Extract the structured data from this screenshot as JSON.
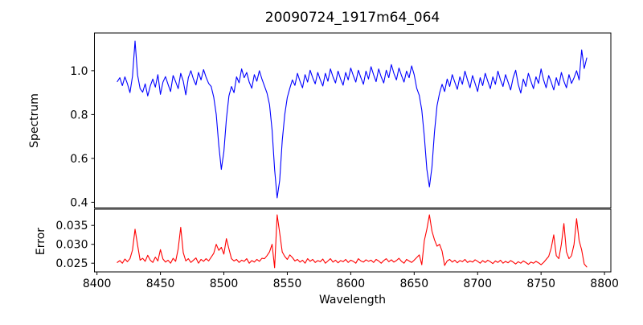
{
  "chart_data": [
    {
      "type": "line",
      "title": "20090724_1917m64_064",
      "ylabel": "Spectrum",
      "xlabel": "",
      "grid": false,
      "legend": false,
      "xlim": [
        8398,
        8805
      ],
      "ylim": [
        0.374,
        1.172
      ],
      "yticks": [
        1.0,
        0.8,
        0.6,
        0.4
      ],
      "ytick_labels": [
        "1.0",
        "0.8",
        "0.6",
        "0.4"
      ],
      "series": [
        {
          "name": "spectrum",
          "color": "#0000ff",
          "x_start": 8416,
          "x_step": 2,
          "values": [
            0.95,
            0.968,
            0.932,
            0.972,
            0.94,
            0.9,
            0.975,
            1.135,
            0.98,
            0.918,
            0.902,
            0.94,
            0.885,
            0.93,
            0.962,
            0.925,
            0.982,
            0.892,
            0.948,
            0.973,
            0.938,
            0.905,
            0.978,
            0.95,
            0.918,
            0.988,
            0.952,
            0.89,
            0.968,
            1.0,
            0.962,
            0.935,
            0.992,
            0.958,
            1.005,
            0.97,
            0.942,
            0.928,
            0.88,
            0.8,
            0.66,
            0.55,
            0.63,
            0.78,
            0.885,
            0.928,
            0.9,
            0.972,
            0.945,
            1.008,
            0.968,
            0.992,
            0.948,
            0.92,
            0.982,
            0.952,
            1.0,
            0.962,
            0.93,
            0.898,
            0.845,
            0.73,
            0.55,
            0.42,
            0.5,
            0.68,
            0.8,
            0.878,
            0.92,
            0.958,
            0.933,
            0.988,
            0.952,
            0.922,
            0.982,
            0.948,
            1.002,
            0.968,
            0.94,
            0.992,
            0.958,
            0.93,
            0.988,
            0.952,
            1.008,
            0.972,
            0.944,
            0.998,
            0.962,
            0.934,
            0.992,
            0.958,
            1.012,
            0.978,
            0.948,
            1.002,
            0.968,
            0.938,
            0.998,
            0.962,
            1.018,
            0.982,
            0.95,
            1.008,
            0.972,
            0.944,
            1.002,
            0.968,
            1.028,
            0.988,
            0.958,
            1.012,
            0.978,
            0.948,
            0.998,
            0.968,
            1.022,
            0.982,
            0.92,
            0.888,
            0.82,
            0.7,
            0.55,
            0.47,
            0.56,
            0.72,
            0.84,
            0.898,
            0.938,
            0.905,
            0.962,
            0.928,
            0.982,
            0.948,
            0.915,
            0.972,
            0.938,
            0.998,
            0.958,
            0.922,
            0.978,
            0.942,
            0.905,
            0.968,
            0.932,
            0.988,
            0.952,
            0.918,
            0.972,
            0.938,
            0.998,
            0.958,
            0.928,
            0.982,
            0.948,
            0.912,
            0.968,
            1.002,
            0.938,
            0.898,
            0.962,
            0.928,
            0.988,
            0.952,
            0.918,
            0.972,
            0.942,
            1.008,
            0.958,
            0.922,
            0.978,
            0.948,
            0.912,
            0.968,
            0.932,
            0.992,
            0.952,
            0.922,
            0.982,
            0.942,
            0.968,
            1.0,
            0.958,
            1.095,
            1.01,
            1.058
          ]
        }
      ]
    },
    {
      "type": "line",
      "title": "",
      "ylabel": "Error",
      "xlabel": "Wavelength",
      "grid": false,
      "legend": false,
      "xlim": [
        8398,
        8805
      ],
      "ylim": [
        0.0227,
        0.0393
      ],
      "yticks": [
        0.035,
        0.03,
        0.025
      ],
      "ytick_labels": [
        "0.035",
        "0.030",
        "0.025"
      ],
      "xticks": [
        8400,
        8450,
        8500,
        8550,
        8600,
        8650,
        8700,
        8750,
        8800
      ],
      "xtick_labels": [
        "8400",
        "8450",
        "8500",
        "8550",
        "8600",
        "8650",
        "8700",
        "8750",
        "8800"
      ],
      "series": [
        {
          "name": "error",
          "color": "#ff0000",
          "x_start": 8416,
          "x_step": 2,
          "values": [
            0.0252,
            0.0257,
            0.025,
            0.0261,
            0.0254,
            0.0262,
            0.0285,
            0.034,
            0.0298,
            0.0258,
            0.0263,
            0.0255,
            0.0271,
            0.0258,
            0.0252,
            0.0266,
            0.0256,
            0.0286,
            0.0261,
            0.0253,
            0.0258,
            0.025,
            0.0263,
            0.0255,
            0.0288,
            0.0345,
            0.0278,
            0.0256,
            0.0262,
            0.0252,
            0.0258,
            0.0264,
            0.025,
            0.026,
            0.0255,
            0.0262,
            0.0256,
            0.0266,
            0.0276,
            0.03,
            0.0284,
            0.0292,
            0.0274,
            0.0315,
            0.0288,
            0.0262,
            0.0256,
            0.026,
            0.0252,
            0.0258,
            0.0255,
            0.0262,
            0.025,
            0.0257,
            0.0253,
            0.026,
            0.0255,
            0.0263,
            0.0262,
            0.027,
            0.028,
            0.03,
            0.0238,
            0.0378,
            0.033,
            0.028,
            0.0268,
            0.026,
            0.0272,
            0.0265,
            0.0256,
            0.026,
            0.0253,
            0.0258,
            0.025,
            0.0262,
            0.0255,
            0.026,
            0.0252,
            0.0257,
            0.0254,
            0.0261,
            0.025,
            0.0256,
            0.0262,
            0.0253,
            0.0258,
            0.0251,
            0.0257,
            0.0254,
            0.026,
            0.0252,
            0.0258,
            0.0255,
            0.025,
            0.0262,
            0.0256,
            0.0253,
            0.0259,
            0.0255,
            0.0258,
            0.0252,
            0.026,
            0.0256,
            0.025,
            0.0257,
            0.0262,
            0.0254,
            0.0259,
            0.0253,
            0.0257,
            0.0263,
            0.0255,
            0.025,
            0.026,
            0.0256,
            0.0252,
            0.0258,
            0.0265,
            0.0272,
            0.0246,
            0.031,
            0.034,
            0.0378,
            0.0335,
            0.0312,
            0.0295,
            0.03,
            0.0282,
            0.0244,
            0.0256,
            0.026,
            0.0253,
            0.0258,
            0.0251,
            0.0257,
            0.0254,
            0.026,
            0.0252,
            0.0256,
            0.0253,
            0.0259,
            0.0255,
            0.025,
            0.0257,
            0.0252,
            0.0258,
            0.0254,
            0.0249,
            0.0256,
            0.0252,
            0.0258,
            0.025,
            0.0255,
            0.0251,
            0.0257,
            0.0253,
            0.0248,
            0.0254,
            0.025,
            0.0256,
            0.0252,
            0.0247,
            0.0253,
            0.025,
            0.0255,
            0.0251,
            0.0246,
            0.0252,
            0.026,
            0.0268,
            0.029,
            0.0325,
            0.027,
            0.0262,
            0.03,
            0.0355,
            0.028,
            0.0262,
            0.027,
            0.03,
            0.0368,
            0.031,
            0.0285,
            0.0248,
            0.024
          ]
        }
      ]
    }
  ]
}
